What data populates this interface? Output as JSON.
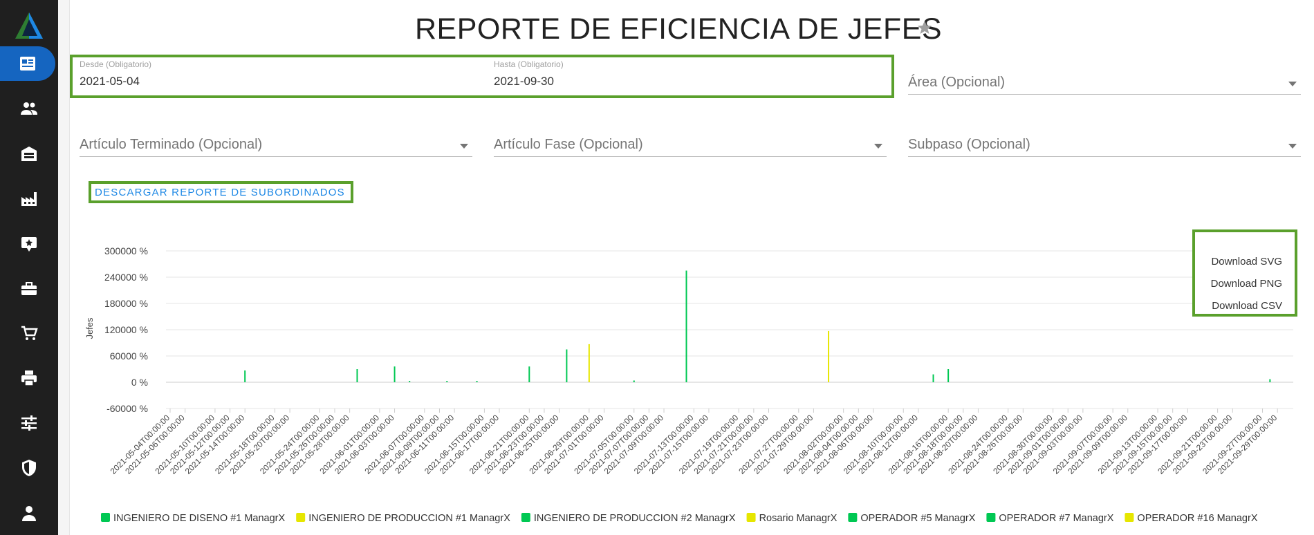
{
  "page": {
    "title": "REPORTE DE EFICIENCIA DE JEFES"
  },
  "filters": {
    "desde_label": "Desde (Obligatorio)",
    "desde_value": "2021-05-04",
    "hasta_label": "Hasta (Obligatorio)",
    "hasta_value": "2021-09-30",
    "area_placeholder": "Área (Opcional)",
    "articulo_terminado_placeholder": "Artículo Terminado (Opcional)",
    "articulo_fase_placeholder": "Artículo Fase (Opcional)",
    "subpaso_placeholder": "Subpaso (Opcional)"
  },
  "actions": {
    "download_report_label": "DESCARGAR REPORTE DE SUBORDINADOS"
  },
  "chart_menu": {
    "items": [
      "Download SVG",
      "Download PNG",
      "Download CSV"
    ]
  },
  "sidebar": {
    "items": [
      "report-icon",
      "people-icon",
      "warehouse-icon",
      "factory-icon",
      "badge-icon",
      "toolbox-icon",
      "cart-icon",
      "printer-icon",
      "sliders-icon",
      "shield-icon",
      "person-icon"
    ],
    "active_index": 0
  },
  "colors": {
    "sidebar_bg": "#1f1f1f",
    "active_nav": "#1565c0",
    "highlight": "#5aa02c",
    "link": "#1e88e5",
    "green_series": "#00c853",
    "yellow_series": "#e6e600"
  },
  "chart_data": {
    "type": "bar",
    "ylabel": "Jefes",
    "ylim": [
      -60000,
      300000
    ],
    "yticks": [
      "300000 %",
      "240000 %",
      "180000 %",
      "120000 %",
      "60000 %",
      "0 %",
      "-60000 %"
    ],
    "x_start": "2021-05-04",
    "x_end": "2021-09-30",
    "x_tick_labels": [
      "2021-05-04T00:00:00",
      "2021-05-06T00:00:00",
      "2021-05-10T00:00:00",
      "2021-05-12T00:00:00",
      "2021-05-14T00:00:00",
      "2021-05-18T00:00:00",
      "2021-05-20T00:00:00",
      "2021-05-24T00:00:00",
      "2021-05-26T00:00:00",
      "2021-05-28T00:00:00",
      "2021-06-01T00:00:00",
      "2021-06-03T00:00:00",
      "2021-06-07T00:00:00",
      "2021-06-09T00:00:00",
      "2021-06-11T00:00:00",
      "2021-06-15T00:00:00",
      "2021-06-17T00:00:00",
      "2021-06-21T00:00:00",
      "2021-06-23T00:00:00",
      "2021-06-25T00:00:00",
      "2021-06-29T00:00:00",
      "2021-07-01T00:00:00",
      "2021-07-05T00:00:00",
      "2021-07-07T00:00:00",
      "2021-07-09T00:00:00",
      "2021-07-13T00:00:00",
      "2021-07-15T00:00:00",
      "2021-07-19T00:00:00",
      "2021-07-21T00:00:00",
      "2021-07-23T00:00:00",
      "2021-07-27T00:00:00",
      "2021-07-29T00:00:00",
      "2021-08-02T00:00:00",
      "2021-08-04T00:00:00",
      "2021-08-06T00:00:00",
      "2021-08-10T00:00:00",
      "2021-08-12T00:00:00",
      "2021-08-16T00:00:00",
      "2021-08-18T00:00:00",
      "2021-08-20T00:00:00",
      "2021-08-24T00:00:00",
      "2021-08-26T00:00:00",
      "2021-08-30T00:00:00",
      "2021-09-01T00:00:00",
      "2021-09-03T00:00:00",
      "2021-09-07T00:00:00",
      "2021-09-09T00:00:00",
      "2021-09-13T00:00:00",
      "2021-09-15T00:00:00",
      "2021-09-17T00:00:00",
      "2021-09-21T00:00:00",
      "2021-09-23T00:00:00",
      "2021-09-27T00:00:00",
      "2021-09-29T00:00:00"
    ],
    "legend_position": "bottom",
    "series": [
      {
        "name": "INGENIERO DE DISENO #1 ManagrX",
        "color": "#00c853"
      },
      {
        "name": "INGENIERO DE PRODUCCION #1 ManagrX",
        "color": "#e6e600"
      },
      {
        "name": "INGENIERO DE PRODUCCION #2 ManagrX",
        "color": "#00c853"
      },
      {
        "name": "Rosario ManagrX",
        "color": "#e6e600"
      },
      {
        "name": "OPERADOR #5 ManagrX",
        "color": "#00c853"
      },
      {
        "name": "OPERADOR #7 ManagrX",
        "color": "#00c853"
      },
      {
        "name": "OPERADOR #16 ManagrX",
        "color": "#e6e600"
      }
    ],
    "bars": [
      {
        "x": "2021-05-14",
        "value": 27000,
        "series": 0
      },
      {
        "x": "2021-05-29",
        "value": 30000,
        "series": 0
      },
      {
        "x": "2021-06-03",
        "value": 36000,
        "series": 0
      },
      {
        "x": "2021-06-05",
        "value": 3000,
        "series": 0
      },
      {
        "x": "2021-06-10",
        "value": 3000,
        "series": 0
      },
      {
        "x": "2021-06-14",
        "value": 3000,
        "series": 0
      },
      {
        "x": "2021-06-21",
        "value": 36000,
        "series": 0
      },
      {
        "x": "2021-06-26",
        "value": 75000,
        "series": 0
      },
      {
        "x": "2021-06-29",
        "value": 87000,
        "series": 1
      },
      {
        "x": "2021-07-05",
        "value": 4000,
        "series": 0
      },
      {
        "x": "2021-07-12",
        "value": 255000,
        "series": 0
      },
      {
        "x": "2021-07-31",
        "value": 117000,
        "series": 1
      },
      {
        "x": "2021-08-14",
        "value": 18000,
        "series": 0
      },
      {
        "x": "2021-08-16",
        "value": 30000,
        "series": 0
      },
      {
        "x": "2021-09-28",
        "value": 7000,
        "series": 0
      }
    ]
  }
}
